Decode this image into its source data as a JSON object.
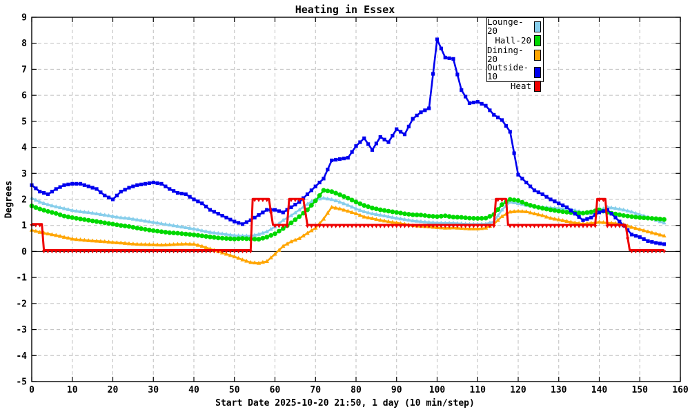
{
  "chart_data": {
    "type": "line",
    "title": "Heating in Essex",
    "xlabel": "Start Date 2025-10-20 21:50, 1 day (10 min/step)",
    "ylabel": "Degrees",
    "xlim": [
      0,
      160
    ],
    "ylim": [
      -5,
      9
    ],
    "xticks": [
      0,
      10,
      20,
      30,
      40,
      50,
      60,
      70,
      80,
      90,
      100,
      110,
      120,
      130,
      140,
      150,
      160
    ],
    "yticks": [
      -5,
      -4,
      -3,
      -2,
      -1,
      0,
      1,
      2,
      3,
      4,
      5,
      6,
      7,
      8,
      9
    ],
    "grid": true,
    "legend_position": "top-right",
    "series": [
      {
        "name": "Lounge-20",
        "color": "#87ceeb",
        "marker": "triangle-up",
        "x0": 0,
        "dx": 2,
        "values": [
          2.05,
          1.9,
          1.8,
          1.72,
          1.65,
          1.58,
          1.53,
          1.5,
          1.45,
          1.4,
          1.35,
          1.3,
          1.27,
          1.22,
          1.17,
          1.12,
          1.07,
          1.02,
          0.97,
          0.92,
          0.87,
          0.8,
          0.74,
          0.7,
          0.66,
          0.62,
          0.6,
          0.6,
          0.66,
          0.76,
          0.95,
          1.2,
          1.38,
          1.6,
          1.82,
          2.0,
          2.05,
          2.0,
          1.9,
          1.78,
          1.64,
          1.53,
          1.45,
          1.4,
          1.34,
          1.28,
          1.23,
          1.18,
          1.15,
          1.12,
          1.1,
          1.09,
          1.09,
          1.07,
          1.05,
          1.05,
          1.06,
          1.15,
          1.6,
          1.9,
          1.85,
          1.78,
          1.73,
          1.7,
          1.68,
          1.66,
          1.64,
          1.58,
          1.5,
          1.45,
          1.58,
          1.7,
          1.66,
          1.6,
          1.52,
          1.42,
          1.32,
          1.2,
          1.1
        ]
      },
      {
        "name": "Hall-20",
        "color": "#00d800",
        "marker": "circle",
        "x0": 0,
        "dx": 2,
        "values": [
          1.75,
          1.63,
          1.54,
          1.46,
          1.36,
          1.3,
          1.25,
          1.2,
          1.15,
          1.1,
          1.05,
          1.0,
          0.96,
          0.9,
          0.85,
          0.8,
          0.76,
          0.72,
          0.7,
          0.67,
          0.64,
          0.6,
          0.56,
          0.52,
          0.5,
          0.48,
          0.5,
          0.48,
          0.47,
          0.55,
          0.68,
          0.88,
          1.1,
          1.34,
          1.6,
          1.95,
          2.35,
          2.3,
          2.18,
          2.05,
          1.9,
          1.77,
          1.67,
          1.6,
          1.55,
          1.5,
          1.45,
          1.41,
          1.4,
          1.36,
          1.34,
          1.37,
          1.32,
          1.31,
          1.28,
          1.27,
          1.28,
          1.42,
          1.8,
          2.0,
          1.96,
          1.82,
          1.73,
          1.66,
          1.6,
          1.55,
          1.51,
          1.48,
          1.47,
          1.52,
          1.6,
          1.5,
          1.44,
          1.38,
          1.34,
          1.3,
          1.28,
          1.26,
          1.23
        ]
      },
      {
        "name": "Dining-20",
        "color": "#ffa500",
        "marker": "triangle-up",
        "x0": 0,
        "dx": 2,
        "values": [
          0.82,
          0.74,
          0.68,
          0.62,
          0.55,
          0.48,
          0.45,
          0.42,
          0.4,
          0.38,
          0.35,
          0.33,
          0.3,
          0.28,
          0.27,
          0.26,
          0.25,
          0.26,
          0.28,
          0.29,
          0.28,
          0.2,
          0.1,
          0.0,
          -0.1,
          -0.2,
          -0.32,
          -0.42,
          -0.45,
          -0.38,
          -0.1,
          0.2,
          0.38,
          0.5,
          0.7,
          0.9,
          1.25,
          1.7,
          1.64,
          1.55,
          1.45,
          1.33,
          1.27,
          1.2,
          1.15,
          1.1,
          1.05,
          1.0,
          0.97,
          0.95,
          0.92,
          0.9,
          0.91,
          0.89,
          0.87,
          0.87,
          0.9,
          1.05,
          1.35,
          1.52,
          1.55,
          1.53,
          1.45,
          1.38,
          1.28,
          1.22,
          1.16,
          1.1,
          1.06,
          1.09,
          1.13,
          1.1,
          1.08,
          1.03,
          0.93,
          0.85,
          0.76,
          0.68,
          0.6
        ]
      },
      {
        "name": "Outside-10",
        "color": "#0000ee",
        "marker": "square",
        "x0": 0,
        "dx": 2,
        "values": [
          2.55,
          2.3,
          2.2,
          2.4,
          2.55,
          2.6,
          2.6,
          2.5,
          2.4,
          2.15,
          2.0,
          2.3,
          2.45,
          2.55,
          2.6,
          2.65,
          2.6,
          2.4,
          2.25,
          2.2,
          2.0,
          1.85,
          1.6,
          1.45,
          1.3,
          1.15,
          1.05,
          1.2,
          1.4,
          1.6,
          1.6,
          1.5,
          1.7,
          1.9,
          2.2,
          2.5,
          2.8,
          3.5,
          3.55,
          3.6,
          4.05,
          4.35,
          3.9,
          4.4,
          4.2,
          4.7,
          4.5,
          5.1,
          5.35,
          5.5,
          8.15,
          7.45,
          7.4,
          6.2,
          5.7,
          5.75,
          5.6,
          5.25,
          5.05,
          4.6,
          2.95,
          2.65,
          2.35,
          2.2,
          2.0,
          1.85,
          1.7,
          1.45,
          1.2,
          1.3,
          1.5,
          1.6,
          1.3,
          1.0,
          0.65,
          0.55,
          0.4,
          0.33,
          0.28
        ]
      },
      {
        "name": "Heat",
        "color": "#ee0000",
        "marker": "triangle-down",
        "step": true,
        "points": [
          [
            0,
            1.05
          ],
          [
            2.5,
            1.05
          ],
          [
            3,
            0.05
          ],
          [
            54,
            0.05
          ],
          [
            54.5,
            2.02
          ],
          [
            58.5,
            2.02
          ],
          [
            59.5,
            1.02
          ],
          [
            63,
            1.02
          ],
          [
            63.5,
            2.02
          ],
          [
            67,
            2.02
          ],
          [
            68,
            1.02
          ],
          [
            114,
            1.02
          ],
          [
            114.5,
            2.02
          ],
          [
            117,
            2.02
          ],
          [
            117.5,
            1.02
          ],
          [
            139,
            1.02
          ],
          [
            139.5,
            2.02
          ],
          [
            141.5,
            2.02
          ],
          [
            142,
            1.02
          ],
          [
            146.5,
            1.02
          ],
          [
            147.5,
            0.05
          ],
          [
            156,
            0.05
          ]
        ]
      }
    ]
  }
}
